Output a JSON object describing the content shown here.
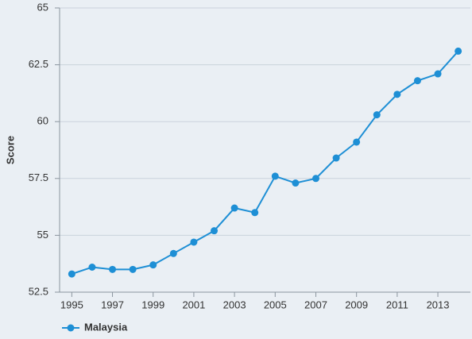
{
  "chart_data": {
    "type": "line",
    "y_label": "Score",
    "x": [
      1995,
      1996,
      1997,
      1998,
      1999,
      2000,
      2001,
      2002,
      2003,
      2004,
      2005,
      2006,
      2007,
      2008,
      2009,
      2010,
      2011,
      2012,
      2013,
      2014
    ],
    "series": [
      {
        "name": "Malaysia",
        "color": "#1e8fd5",
        "values": [
          53.3,
          53.6,
          53.5,
          53.5,
          53.7,
          54.2,
          54.7,
          55.2,
          56.2,
          56.0,
          57.6,
          57.3,
          57.5,
          58.4,
          59.1,
          60.3,
          61.2,
          61.8,
          62.1,
          63.1
        ]
      }
    ],
    "xlim": [
      1994.4,
      2014.6
    ],
    "xticks": [
      1995,
      1997,
      1999,
      2001,
      2003,
      2005,
      2007,
      2009,
      2011,
      2013
    ],
    "ylim": [
      52.5,
      65
    ],
    "yticks": [
      52.5,
      55,
      57.5,
      60,
      62.5,
      65
    ],
    "grid": true,
    "legend": "bottom-left"
  }
}
